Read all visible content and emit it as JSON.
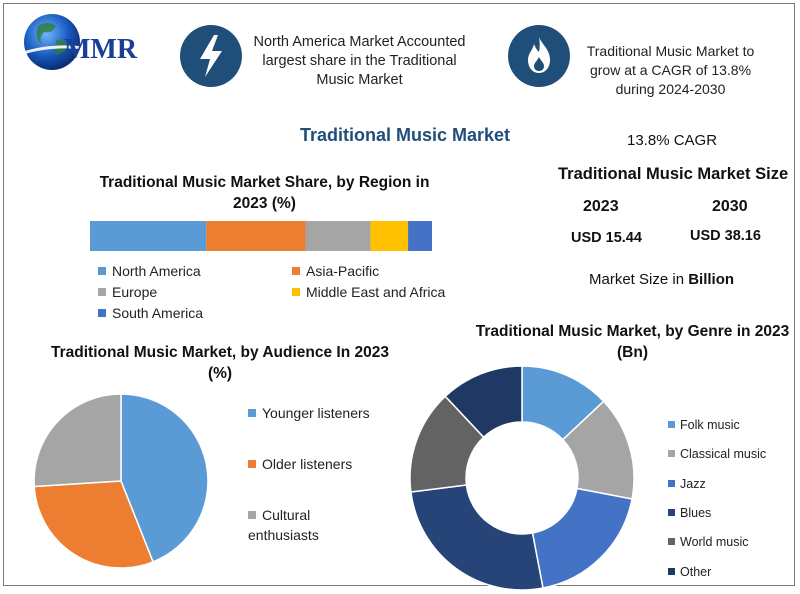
{
  "logo": {
    "text": "MMR"
  },
  "header": {
    "left_icon": "lightning-bolt-icon",
    "left_text": "North America Market Accounted largest share in the Traditional Music Market",
    "right_icon": "flame-icon",
    "right_text": "Traditional Music Market to grow at a CAGR of 13.8% during 2024-2030"
  },
  "main_title": "Traditional Music Market",
  "market_size": {
    "cagr": "13.8% CAGR",
    "title": "Traditional Music Market Size",
    "year1": "2023",
    "year2": "2030",
    "value1": "USD 15.44",
    "value2": "USD 38.16",
    "note_prefix": "Market Size in ",
    "note_bold": "Billion"
  },
  "colors": {
    "navy": "#1f4e79",
    "light_blue": "#5b9bd5",
    "orange": "#ed7d31",
    "gray": "#a5a5a5",
    "gold": "#ffc000",
    "blue": "#4472c4",
    "dark_navy": "#264478",
    "dark_gray": "#636363"
  },
  "chart_data": [
    {
      "type": "bar",
      "stacked": true,
      "orientation": "horizontal",
      "title": "Traditional Music Market Share, by Region in 2023 (%)",
      "categories": [
        "North America",
        "Asia-Pacific",
        "Europe",
        "Middle East and Africa",
        "South America"
      ],
      "values": [
        34,
        29,
        19,
        11,
        7
      ],
      "colors": [
        "#5b9bd5",
        "#ed7d31",
        "#a5a5a5",
        "#ffc000",
        "#4472c4"
      ],
      "legend": "bottom"
    },
    {
      "type": "pie",
      "title": "Traditional Music Market, by Audience In 2023 (%)",
      "categories": [
        "Younger listeners",
        "Older listeners",
        "Cultural enthusiasts"
      ],
      "values": [
        44,
        30,
        26
      ],
      "colors": [
        "#5b9bd5",
        "#ed7d31",
        "#a5a5a5"
      ],
      "legend": "right"
    },
    {
      "type": "pie",
      "donut": true,
      "title": "Traditional Music Market, by Genre in 2023 (Bn)",
      "categories": [
        "Folk music",
        "Classical music",
        "Jazz",
        "Blues",
        "World music",
        "Other"
      ],
      "values": [
        13,
        15,
        19,
        26,
        15,
        12
      ],
      "colors": [
        "#5b9bd5",
        "#a5a5a5",
        "#4472c4",
        "#264478",
        "#636363",
        "#1f3864"
      ],
      "legend": "right"
    }
  ]
}
